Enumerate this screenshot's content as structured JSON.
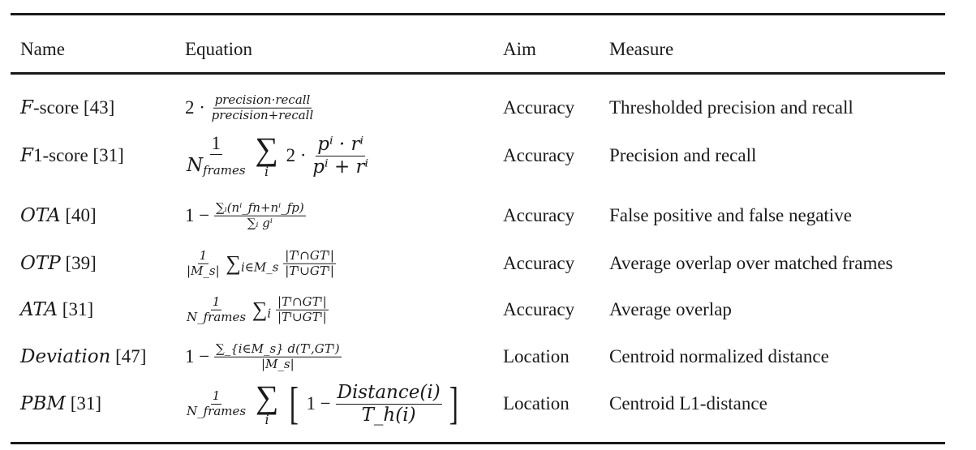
{
  "headers": {
    "name": "Name",
    "equation": "Equation",
    "aim": "Aim",
    "measure": "Measure"
  },
  "rows": [
    {
      "name_symbol": "F",
      "name_suffix": "-score [43]",
      "aim": "Accuracy",
      "measure": "Thresholded precision and recall",
      "eq": {
        "coef": "2 ·",
        "num": "precision·recall",
        "den": "precision+recall"
      }
    },
    {
      "name_symbol": "F",
      "name_suffix": "1-score [31]",
      "aim": "Accuracy",
      "measure": "Precision and recall",
      "eq": {
        "coef_num": "1",
        "coef_den": "N",
        "coef_den_sub": "frames",
        "sum_sub": "i",
        "mult": "2 ·",
        "num": "pⁱ · rⁱ",
        "den": "pⁱ + rⁱ"
      }
    },
    {
      "name_symbol": "OTA",
      "name_suffix": " [40]",
      "aim": "Accuracy",
      "measure": "False positive and false negative",
      "eq": {
        "lead": "1 −",
        "num": "∑ᵢ(nⁱ_fn+nⁱ_fp)",
        "den": "∑ᵢ gⁱ"
      }
    },
    {
      "name_symbol": "OTP",
      "name_suffix": " [39]",
      "aim": "Accuracy",
      "measure": "Average overlap over matched frames",
      "eq": {
        "coef_num": "1",
        "coef_den": "|M_s|",
        "sum": "∑",
        "sum_sub": "i∈M_s",
        "num": "|Tⁱ∩GTⁱ|",
        "den": "|Tⁱ∪GTⁱ|"
      }
    },
    {
      "name_symbol": "ATA",
      "name_suffix": " [31]",
      "aim": "Accuracy",
      "measure": "Average overlap",
      "eq": {
        "coef_num": "1",
        "coef_den": "N_frames",
        "sum": "∑",
        "sum_sub": "i",
        "num": "|Tⁱ∩GTⁱ|",
        "den": "|Tⁱ∪GTⁱ|"
      }
    },
    {
      "name_symbol": "Deviation",
      "name_suffix": " [47]",
      "aim": "Location",
      "measure": "Centroid normalized distance",
      "eq": {
        "lead": "1 −",
        "num": "∑_{i∈M_s} d(Tⁱ,GTⁱ)",
        "den": "|M_s|"
      }
    },
    {
      "name_symbol": "PBM",
      "name_suffix": " [31]",
      "aim": "Location",
      "measure": "Centroid L1-distance",
      "eq": {
        "coef_num": "1",
        "coef_den": "N_frames",
        "sum_sub": "i",
        "lead": "1 −",
        "num": "Distance(i)",
        "den": "T_h(i)"
      }
    }
  ]
}
